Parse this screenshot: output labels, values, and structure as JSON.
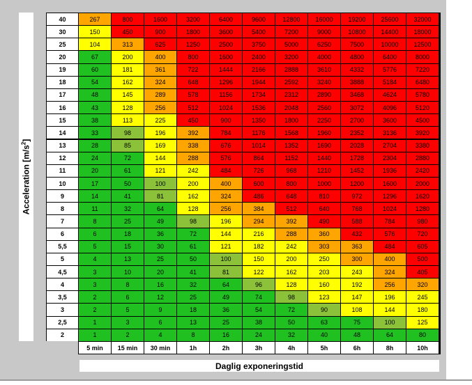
{
  "chart_data": {
    "type": "heatmap",
    "xlabel": "Daglig exponeringstid",
    "ylabel": "Acceleration [m/s²]",
    "ylabel_parts": {
      "base": "Acceleration [m/s",
      "exp": "2",
      "end": "]"
    },
    "columns": [
      "5 min",
      "15 min",
      "30 min",
      "1h",
      "2h",
      "3h",
      "4h",
      "5h",
      "6h",
      "8h",
      "10h"
    ],
    "rows": [
      "40",
      "30",
      "25",
      "20",
      "19",
      "18",
      "17",
      "16",
      "15",
      "14",
      "13",
      "12",
      "11",
      "10",
      "9",
      "8",
      "7",
      "6",
      "5,5",
      "5",
      "4,5",
      "4",
      "3,5",
      "3",
      "2,5",
      "2"
    ],
    "values": [
      [
        267,
        800,
        1600,
        3200,
        6400,
        9600,
        12800,
        16000,
        19200,
        25600,
        32000
      ],
      [
        150,
        450,
        900,
        1800,
        3600,
        5400,
        7200,
        9000,
        10800,
        14400,
        18000
      ],
      [
        104,
        313,
        625,
        1250,
        2500,
        3750,
        5000,
        6250,
        7500,
        10000,
        12500
      ],
      [
        67,
        200,
        400,
        800,
        1600,
        2400,
        3200,
        4000,
        4800,
        6400,
        8000
      ],
      [
        60,
        181,
        361,
        722,
        1444,
        2166,
        2888,
        3610,
        4332,
        5776,
        7220
      ],
      [
        54,
        162,
        324,
        648,
        1296,
        1944,
        2592,
        3240,
        3888,
        5184,
        6480
      ],
      [
        48,
        145,
        289,
        578,
        1156,
        1734,
        2312,
        2890,
        3468,
        4624,
        5780
      ],
      [
        43,
        128,
        256,
        512,
        1024,
        1536,
        2048,
        2560,
        3072,
        4096,
        5120
      ],
      [
        38,
        113,
        225,
        450,
        900,
        1350,
        1800,
        2250,
        2700,
        3600,
        4500
      ],
      [
        33,
        98,
        196,
        392,
        784,
        1176,
        1568,
        1960,
        2352,
        3136,
        3920
      ],
      [
        28,
        85,
        169,
        338,
        676,
        1014,
        1352,
        1690,
        2028,
        2704,
        3380
      ],
      [
        24,
        72,
        144,
        288,
        576,
        864,
        1152,
        1440,
        1728,
        2304,
        2880
      ],
      [
        20,
        61,
        121,
        242,
        484,
        726,
        968,
        1210,
        1452,
        1936,
        2420
      ],
      [
        17,
        50,
        100,
        200,
        400,
        600,
        800,
        1000,
        1200,
        1600,
        2000
      ],
      [
        14,
        41,
        81,
        162,
        324,
        486,
        648,
        810,
        972,
        1296,
        1620
      ],
      [
        11,
        32,
        64,
        128,
        256,
        384,
        512,
        640,
        768,
        1024,
        1280
      ],
      [
        8,
        25,
        49,
        98,
        196,
        294,
        392,
        490,
        588,
        784,
        980
      ],
      [
        6,
        18,
        36,
        72,
        144,
        216,
        288,
        360,
        432,
        576,
        720
      ],
      [
        5,
        15,
        30,
        61,
        121,
        182,
        242,
        303,
        363,
        484,
        605
      ],
      [
        4,
        13,
        25,
        50,
        100,
        150,
        200,
        250,
        300,
        400,
        500
      ],
      [
        3,
        10,
        20,
        41,
        81,
        122,
        162,
        203,
        243,
        324,
        405
      ],
      [
        3,
        8,
        16,
        32,
        64,
        96,
        128,
        160,
        192,
        256,
        320
      ],
      [
        2,
        6,
        12,
        25,
        49,
        74,
        98,
        123,
        147,
        196,
        245
      ],
      [
        2,
        5,
        9,
        18,
        36,
        54,
        72,
        90,
        108,
        144,
        180
      ],
      [
        1,
        3,
        6,
        13,
        25,
        38,
        50,
        63,
        75,
        100,
        125
      ],
      [
        1,
        2,
        4,
        8,
        16,
        24,
        32,
        40,
        48,
        64,
        80
      ]
    ],
    "color_scale": {
      "bands": [
        {
          "max": 80,
          "color": "#21c021"
        },
        {
          "max": 100,
          "color": "#8cc23a"
        },
        {
          "max": 250,
          "color": "#ffff00"
        },
        {
          "max": 400,
          "color": "#ffa500"
        },
        {
          "max": 1000000,
          "color": "#ff0000"
        }
      ]
    }
  }
}
